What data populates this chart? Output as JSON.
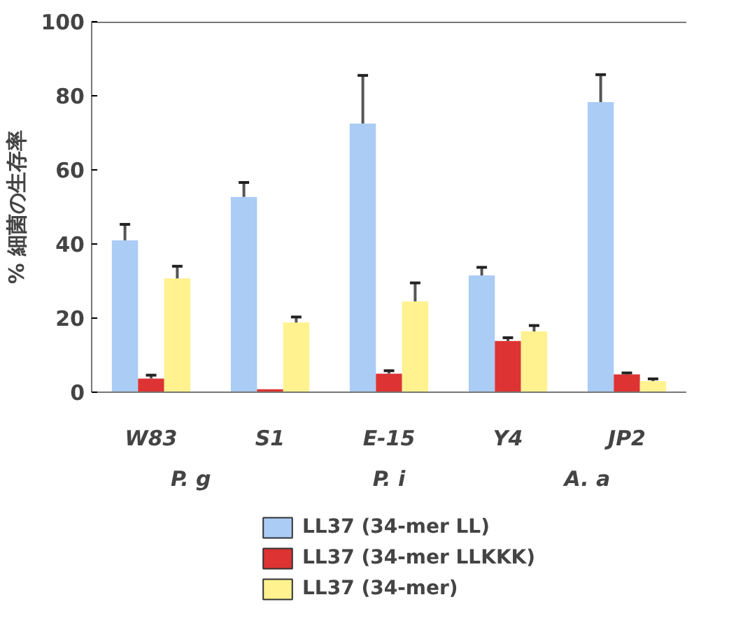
{
  "chart_data": {
    "type": "bar",
    "ylabel": "% 細菌の生存率",
    "categories": [
      "W83",
      "S1",
      "E-15",
      "Y4",
      "JP2"
    ],
    "series": [
      {
        "name": "LL37 (34-mer LL)",
        "color": "#aaccf5",
        "values": [
          41,
          52.7,
          72.5,
          31.5,
          78.3
        ],
        "errors": [
          [
            41,
            45.3
          ],
          [
            52.7,
            56.6
          ],
          [
            72.5,
            85.5
          ],
          [
            31.5,
            33.7
          ],
          [
            78.3,
            85.7
          ]
        ]
      },
      {
        "name": "LL37 (34-mer LLKKK)",
        "color": "#dd3333",
        "values": [
          3.7,
          0.8,
          5,
          13.8,
          4.8
        ],
        "errors": [
          [
            3.7,
            4.6
          ],
          null,
          [
            5,
            5.8
          ],
          [
            13.8,
            14.7
          ],
          [
            4.8,
            5.2
          ]
        ]
      },
      {
        "name": "LL37 (34-mer)",
        "color": "#fff28f",
        "values": [
          30.7,
          18.8,
          24.5,
          16.4,
          3
        ],
        "errors": [
          [
            30.7,
            34
          ],
          [
            18.8,
            20.3
          ],
          [
            24.5,
            29.5
          ],
          [
            16.4,
            18
          ],
          [
            3,
            3.6
          ]
        ]
      }
    ],
    "ylim": [
      0,
      100
    ],
    "yticks": [
      0,
      20,
      40,
      60,
      80,
      100
    ],
    "grid": false,
    "legend": "bottom",
    "annotations": [
      "P. g",
      "P. i",
      "A. a"
    ]
  }
}
